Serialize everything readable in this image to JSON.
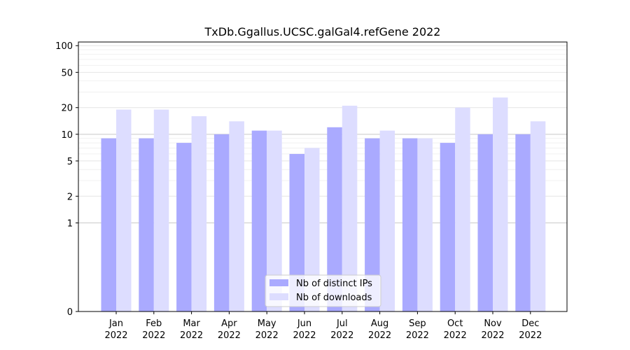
{
  "chart_data": {
    "type": "bar",
    "title": "TxDb.Ggallus.UCSC.galGal4.refGene 2022",
    "scale": "symlog",
    "categories": [
      {
        "month": "Jan",
        "year": "2022"
      },
      {
        "month": "Feb",
        "year": "2022"
      },
      {
        "month": "Mar",
        "year": "2022"
      },
      {
        "month": "Apr",
        "year": "2022"
      },
      {
        "month": "May",
        "year": "2022"
      },
      {
        "month": "Jun",
        "year": "2022"
      },
      {
        "month": "Jul",
        "year": "2022"
      },
      {
        "month": "Aug",
        "year": "2022"
      },
      {
        "month": "Sep",
        "year": "2022"
      },
      {
        "month": "Oct",
        "year": "2022"
      },
      {
        "month": "Nov",
        "year": "2022"
      },
      {
        "month": "Dec",
        "year": "2022"
      }
    ],
    "series": [
      {
        "name": "Nb of distinct IPs",
        "color": "#aaaaff",
        "values": [
          9,
          9,
          8,
          10,
          11,
          6,
          12,
          9,
          9,
          8,
          10,
          10
        ]
      },
      {
        "name": "Nb of downloads",
        "color": "#ddddff",
        "values": [
          19,
          19,
          16,
          14,
          11,
          7,
          21,
          11,
          9,
          20,
          26,
          14
        ]
      }
    ],
    "yticks": [
      {
        "value": 0,
        "label": "0"
      },
      {
        "value": 1,
        "label": "1"
      },
      {
        "value": 2,
        "label": "2"
      },
      {
        "value": 5,
        "label": "5"
      },
      {
        "value": 10,
        "label": "10"
      },
      {
        "value": 20,
        "label": "20"
      },
      {
        "value": 50,
        "label": "50"
      },
      {
        "value": 100,
        "label": "100"
      }
    ],
    "ylim": [
      0,
      110
    ],
    "grid": true,
    "legend_position": "bottom-center"
  }
}
